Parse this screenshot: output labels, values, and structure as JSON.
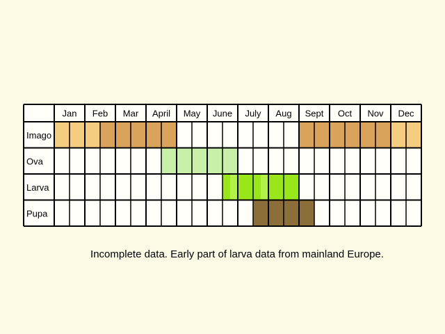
{
  "chart_data": {
    "type": "table",
    "months": [
      "Jan",
      "Feb",
      "Mar",
      "Apr",
      "May",
      "June",
      "July",
      "Aug",
      "Sept",
      "Oct",
      "Nov",
      "Dec"
    ],
    "month_labels": [
      "Jan",
      "Feb",
      "Mar",
      "April",
      "May",
      "June",
      "July",
      "Aug",
      "Sept",
      "Oct",
      "Nov",
      "Dec"
    ],
    "stages": [
      {
        "label": "Imago",
        "halves": [
          "light",
          "light",
          "light",
          "dark",
          "dark",
          "dark",
          "dark",
          "dark",
          "none",
          "none",
          "none",
          "none",
          "none",
          "none",
          "none",
          "none",
          "dark",
          "dark",
          "dark",
          "dark",
          "dark",
          "dark",
          "light",
          "light"
        ]
      },
      {
        "label": "Ova",
        "halves": [
          "none",
          "none",
          "none",
          "none",
          "none",
          "none",
          "none",
          "light",
          "light",
          "light",
          "light",
          "light",
          "none",
          "none",
          "none",
          "none",
          "none",
          "none",
          "none",
          "none",
          "none",
          "none",
          "none",
          "none"
        ]
      },
      {
        "label": "Larva",
        "halves": [
          "none",
          "none",
          "none",
          "none",
          "none",
          "none",
          "none",
          "none",
          "none",
          "none",
          "none",
          "mixed",
          "bright",
          "mixed",
          "bright",
          "bright",
          "none",
          "none",
          "none",
          "none",
          "none",
          "none",
          "none",
          "none"
        ]
      },
      {
        "label": "Pupa",
        "halves": [
          "none",
          "none",
          "none",
          "none",
          "none",
          "none",
          "none",
          "none",
          "none",
          "none",
          "none",
          "none",
          "none",
          "dark",
          "dark",
          "dark",
          "dark",
          "none",
          "none",
          "none",
          "none",
          "none",
          "none",
          "none"
        ]
      }
    ],
    "colors": {
      "Imago": {
        "light": "#f5cd80",
        "dark": "#d9a35c"
      },
      "Ova": {
        "light": "#c8f0a8"
      },
      "Larva": {
        "bright": "#99e61a",
        "light": "#b2f04a"
      },
      "Pupa": {
        "dark": "#8c6e3a"
      }
    },
    "grid": true
  },
  "caption": "Incomplete data. Early part of larva data from mainland Europe."
}
